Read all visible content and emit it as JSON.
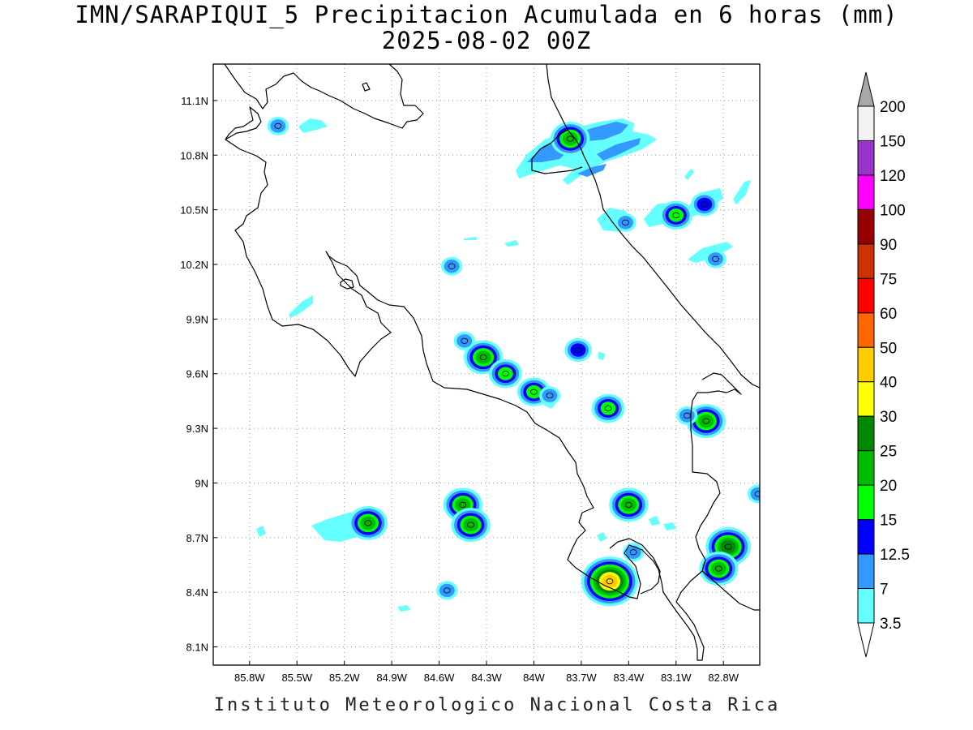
{
  "title_line1": "IMN/SARAPIQUI_5 Precipitacion Acumulada en 6 horas (mm)",
  "title_line2": "2025-08-02 00Z",
  "footer": "Instituto Meteorologico Nacional Costa Rica",
  "map": {
    "lon_range": [
      -86.03,
      -82.57
    ],
    "lat_range": [
      8.0,
      11.3
    ],
    "lon_ticks": [
      {
        "value": -85.8,
        "label": "85.8W"
      },
      {
        "value": -85.5,
        "label": "85.5W"
      },
      {
        "value": -85.2,
        "label": "85.2W"
      },
      {
        "value": -84.9,
        "label": "84.9W"
      },
      {
        "value": -84.6,
        "label": "84.6W"
      },
      {
        "value": -84.3,
        "label": "84.3W"
      },
      {
        "value": -84.0,
        "label": "84W"
      },
      {
        "value": -83.7,
        "label": "83.7W"
      },
      {
        "value": -83.4,
        "label": "83.4W"
      },
      {
        "value": -83.1,
        "label": "83.1W"
      },
      {
        "value": -82.8,
        "label": "82.8W"
      }
    ],
    "lat_ticks": [
      {
        "value": 11.1,
        "label": "11.1N"
      },
      {
        "value": 10.8,
        "label": "10.8N"
      },
      {
        "value": 10.5,
        "label": "10.5N"
      },
      {
        "value": 10.2,
        "label": "10.2N"
      },
      {
        "value": 9.9,
        "label": "9.9N"
      },
      {
        "value": 9.6,
        "label": "9.6N"
      },
      {
        "value": 9.3,
        "label": "9.3N"
      },
      {
        "value": 9.0,
        "label": "9N"
      },
      {
        "value": 8.7,
        "label": "8.7N"
      },
      {
        "value": 8.4,
        "label": "8.4N"
      },
      {
        "value": 8.1,
        "label": "8.1N"
      }
    ],
    "precip_cells": [
      {
        "lon": -84.32,
        "lat": 9.69,
        "mm": 20
      },
      {
        "lon": -84.18,
        "lat": 9.6,
        "mm": 15
      },
      {
        "lon": -84.0,
        "lat": 9.5,
        "mm": 15
      },
      {
        "lon": -83.9,
        "lat": 9.48,
        "mm": 7
      },
      {
        "lon": -84.44,
        "lat": 9.78,
        "mm": 7
      },
      {
        "lon": -83.72,
        "lat": 9.73,
        "mm": 12.5
      },
      {
        "lon": -83.53,
        "lat": 9.41,
        "mm": 15
      },
      {
        "lon": -82.91,
        "lat": 9.34,
        "mm": 20
      },
      {
        "lon": -83.03,
        "lat": 9.37,
        "mm": 7
      },
      {
        "lon": -84.52,
        "lat": 10.19,
        "mm": 7
      },
      {
        "lon": -85.05,
        "lat": 8.78,
        "mm": 20
      },
      {
        "lon": -84.45,
        "lat": 8.88,
        "mm": 20
      },
      {
        "lon": -84.4,
        "lat": 8.77,
        "mm": 20
      },
      {
        "lon": -84.55,
        "lat": 8.41,
        "mm": 7
      },
      {
        "lon": -83.4,
        "lat": 8.88,
        "mm": 20
      },
      {
        "lon": -83.52,
        "lat": 8.46,
        "mm": 40
      },
      {
        "lon": -82.77,
        "lat": 8.65,
        "mm": 25
      },
      {
        "lon": -82.83,
        "lat": 8.53,
        "mm": 20
      },
      {
        "lon": -82.58,
        "lat": 8.94,
        "mm": 7
      },
      {
        "lon": -83.77,
        "lat": 10.89,
        "mm": 20
      },
      {
        "lon": -83.1,
        "lat": 10.47,
        "mm": 15
      },
      {
        "lon": -82.92,
        "lat": 10.53,
        "mm": 12.5
      },
      {
        "lon": -83.42,
        "lat": 10.43,
        "mm": 7
      },
      {
        "lon": -82.85,
        "lat": 10.23,
        "mm": 7
      },
      {
        "lon": -85.62,
        "lat": 10.96,
        "mm": 7
      },
      {
        "lon": -83.37,
        "lat": 8.62,
        "mm": 7
      }
    ]
  },
  "colorbar": {
    "levels": [
      "200",
      "150",
      "120",
      "100",
      "90",
      "75",
      "60",
      "50",
      "40",
      "30",
      "25",
      "20",
      "15",
      "12.5",
      "7",
      "3.5"
    ],
    "colors": [
      "#f2f2f2",
      "#9933cc",
      "#ff00ff",
      "#990000",
      "#cc3300",
      "#ff0000",
      "#ff6600",
      "#ffcc00",
      "#ffff00",
      "#008800",
      "#00bb00",
      "#00ff00",
      "#0000ff",
      "#3399ff",
      "#66ffff"
    ],
    "top_triangle_color": "#a8a8a8",
    "bottom_triangle_color": "#ffffff"
  }
}
